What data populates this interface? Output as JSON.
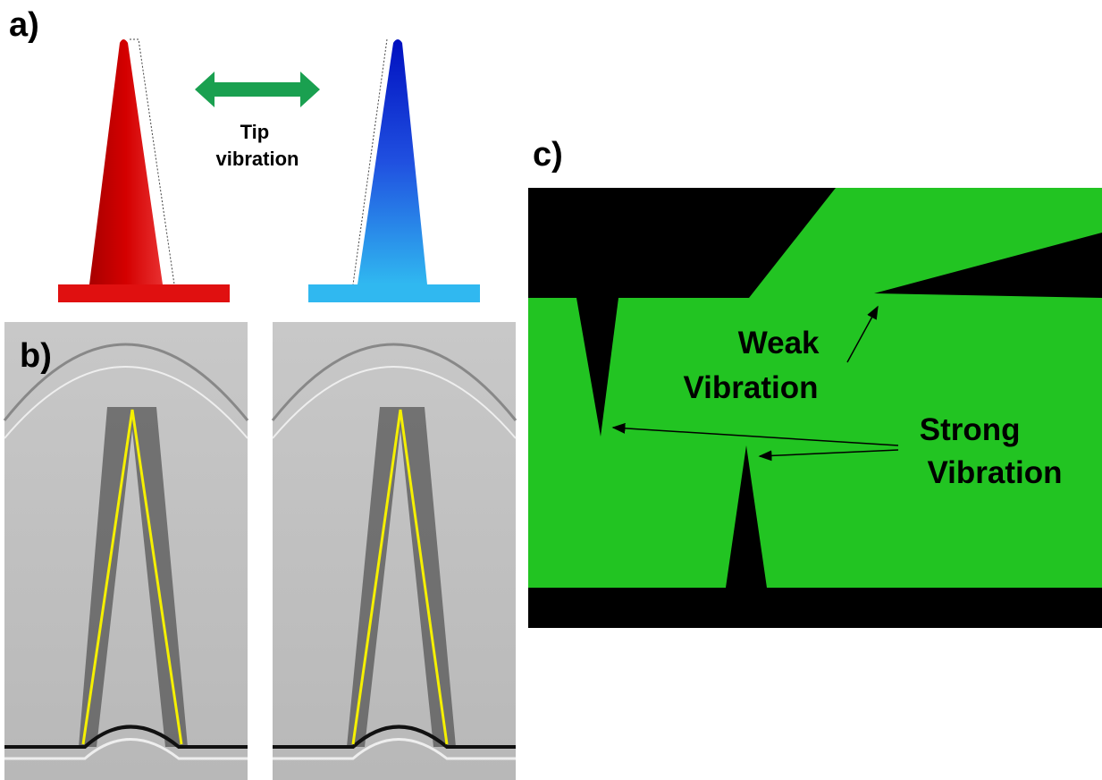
{
  "panels": [
    {
      "label": "a)",
      "caption": [
        "Tip",
        "vibration"
      ]
    },
    {
      "label": "b)"
    },
    {
      "label": "c)",
      "annotations": [
        [
          "Weak",
          "Vibration"
        ],
        [
          "Strong",
          "Vibration"
        ]
      ]
    }
  ]
}
